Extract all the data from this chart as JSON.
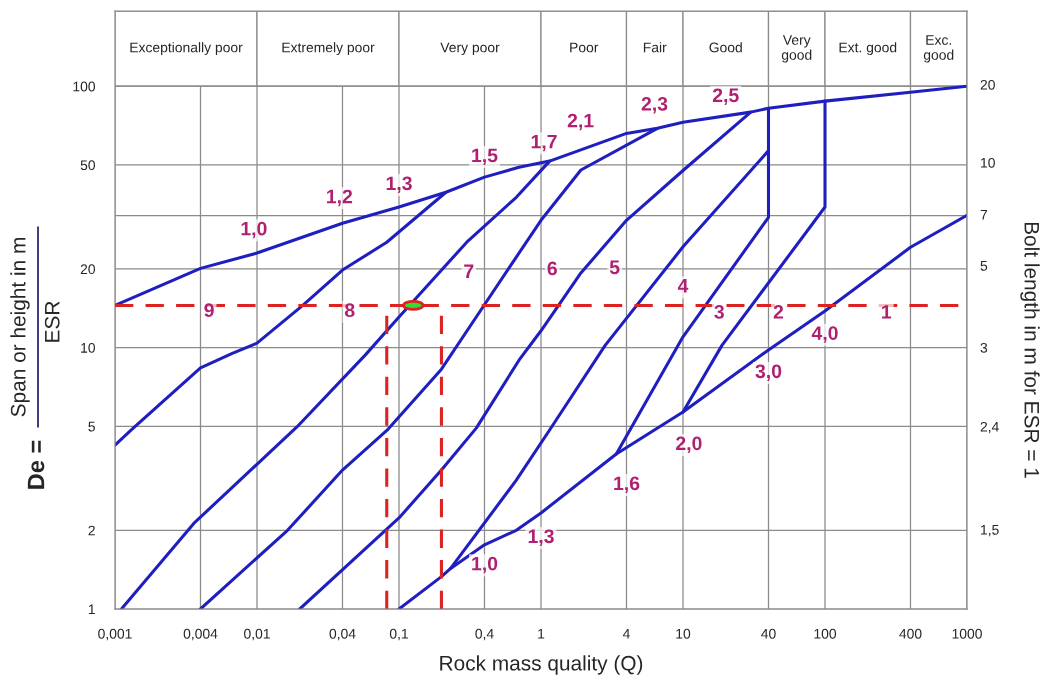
{
  "chart_data": {
    "type": "line",
    "xlabel": "Rock mass quality (Q)",
    "ylabel": "Span or height in m",
    "y2label": "Bolt length in m for ESR = 1",
    "log": "xy",
    "xlim": [
      0.001,
      1000
    ],
    "ylim": [
      1,
      194
    ],
    "xticks": [
      {
        "value": 0.001,
        "label": "0,001"
      },
      {
        "value": 0.004,
        "label": "0,004"
      },
      {
        "value": 0.01,
        "label": "0,01"
      },
      {
        "value": 0.04,
        "label": "0,04"
      },
      {
        "value": 0.1,
        "label": "0,1"
      },
      {
        "value": 0.4,
        "label": "0,4"
      },
      1,
      4,
      10,
      40,
      100,
      400,
      1000
    ],
    "yticks": [
      1,
      2,
      5,
      10,
      20,
      50,
      100
    ],
    "grid": true,
    "series": [
      {
        "color": "#1f1fc0",
        "x": [
          0.001,
          0.004,
          0.01,
          0.04,
          0.1,
          0.214,
          0.4,
          0.7,
          1.15,
          4,
          6.6,
          10,
          30,
          40,
          100,
          400,
          1000
        ],
        "values": [
          14.5,
          20.1,
          23,
          29.9,
          34.5,
          39.3,
          44.9,
          49,
          51.7,
          66,
          69,
          72.8,
          79.6,
          82.4,
          87.7,
          94.9,
          100
        ]
      },
      {
        "color": "#1f1fc0",
        "x": [
          0.1,
          0.199,
          0.231,
          0.4,
          0.67,
          1,
          3.39,
          10,
          40,
          100,
          400,
          1000
        ],
        "values": [
          1,
          1.33,
          1.43,
          1.76,
          2.0,
          2.33,
          3.92,
          5.67,
          9.8,
          13.8,
          24.2,
          32.1
        ]
      },
      {
        "color": "#1f1fc0",
        "x": [
          0.001,
          0.00132,
          0.004,
          0.0067,
          0.01,
          0.021,
          0.04,
          0.082,
          0.214
        ],
        "values": [
          4.24,
          4.88,
          8.37,
          9.5,
          10.4,
          14.5,
          19.8,
          25.3,
          39.3
        ]
      },
      {
        "color": "#1f1fc0",
        "x": [
          0.00111,
          0.0036,
          0.0191,
          0.058,
          0.1,
          0.3,
          0.67,
          1.15
        ],
        "values": [
          1,
          2.13,
          4.97,
          9.38,
          13.1,
          25.3,
          37.6,
          51.7
        ]
      },
      {
        "color": "#1f1fc0",
        "x": [
          0.004,
          0.0164,
          0.04,
          0.084,
          0.199,
          0.39,
          0.67,
          1,
          1.91,
          6.6
        ],
        "values": [
          1,
          2.0,
          3.4,
          4.88,
          8.27,
          14.3,
          22.2,
          30.7,
          47.8,
          69
        ]
      },
      {
        "color": "#1f1fc0",
        "x": [
          0.02,
          0.1,
          0.199,
          0.35,
          0.7,
          1,
          1.91,
          4,
          10,
          30
        ],
        "values": [
          1,
          2.23,
          3.4,
          4.92,
          8.95,
          11.6,
          19.3,
          30.7,
          47.6,
          79.6
        ]
      },
      {
        "color": "#1f1fc0",
        "x": [
          0.231,
          0.67,
          1.15,
          2.83,
          10,
          40
        ],
        "values": [
          1.43,
          3.11,
          4.84,
          10.2,
          24.3,
          56.7
        ]
      },
      {
        "color": "#1f1fc0",
        "x": [
          3.39,
          10,
          40,
          40
        ],
        "values": [
          3.92,
          11,
          31.5,
          82.4
        ]
      },
      {
        "color": "#1f1fc0",
        "x": [
          10,
          18.8,
          100,
          100
        ],
        "values": [
          5.67,
          10.2,
          34.5,
          87.7
        ]
      },
      {
        "color": "#dd2222",
        "line_style": "dashed",
        "x": [
          0.082,
          0.082
        ],
        "values": [
          1,
          14.5
        ]
      },
      {
        "color": "#dd2222",
        "line_style": "dashed",
        "x": [
          0.199,
          0.199
        ],
        "values": [
          1,
          14.5
        ]
      },
      {
        "type": "scatter",
        "color": "#33dd33",
        "marker": "circle",
        "x": [
          0.126
        ],
        "values": [
          14.5
        ]
      }
    ],
    "ref_lines": [
      {
        "axis": "y",
        "value": 14.5,
        "color": "#dd2222",
        "line_style": "dashed"
      },
      {
        "axis": "y",
        "value": 32,
        "color": "#8a8a8a"
      }
    ],
    "bands": [
      {
        "axis": "x",
        "from": 0.001,
        "to": 0.01,
        "label": "Exceptionally poor",
        "color": "#ffffff"
      },
      {
        "axis": "x",
        "from": 0.01,
        "to": 0.1,
        "label": "Extremely poor",
        "color": "#ffffff"
      },
      {
        "axis": "x",
        "from": 0.1,
        "to": 1,
        "label": "Very poor",
        "color": "#ffffff"
      },
      {
        "axis": "x",
        "from": 1,
        "to": 4,
        "label": "Poor",
        "color": "#ffffff"
      },
      {
        "axis": "x",
        "from": 4,
        "to": 10,
        "label": "Fair",
        "color": "#ffffff"
      },
      {
        "axis": "x",
        "from": 10,
        "to": 40,
        "label": "Good",
        "color": "#ffffff"
      },
      {
        "axis": "x",
        "from": 40,
        "to": 100,
        "label": "Very\ngood",
        "color": "#ffffff"
      },
      {
        "axis": "x",
        "from": 100,
        "to": 400,
        "label": "Ext. good",
        "color": "#ffffff"
      },
      {
        "axis": "x",
        "from": 400,
        "to": 1000,
        "label": "Exc.\ngood",
        "color": "#ffffff"
      }
    ],
    "annotations": [
      "De =",
      "ESR",
      "20",
      "10",
      "7",
      "5",
      "3",
      "2,4",
      "1,5",
      {
        "text": "9",
        "x": 0.0046,
        "y": 13.7
      },
      {
        "text": "8",
        "x": 0.045,
        "y": 13.7
      },
      {
        "text": "7",
        "x": 0.31,
        "y": 19.3
      },
      {
        "text": "6",
        "x": 1.2,
        "y": 19.8
      },
      {
        "text": "5",
        "x": 3.3,
        "y": 20
      },
      {
        "text": "4",
        "x": 10,
        "y": 17
      },
      {
        "text": "3",
        "x": 18,
        "y": 13.5
      },
      {
        "text": "2",
        "x": 47,
        "y": 13.5
      },
      {
        "text": "1",
        "x": 270,
        "y": 13.5
      },
      {
        "text": "1,0",
        "x": 0.0095,
        "y": 28.1
      },
      {
        "text": "1,2",
        "x": 0.038,
        "y": 37.3
      },
      {
        "text": "1,3",
        "x": 0.1,
        "y": 41.9
      },
      {
        "text": "1,5",
        "x": 0.4,
        "y": 53.6
      },
      {
        "text": "1,7",
        "x": 1.05,
        "y": 60.5
      },
      {
        "text": "2,1",
        "x": 1.9,
        "y": 72.8
      },
      {
        "text": "2,3",
        "x": 6.3,
        "y": 84.4
      },
      {
        "text": "2,5",
        "x": 20,
        "y": 91
      },
      {
        "text": "1,0",
        "x": 0.4,
        "y": 1.47
      },
      {
        "text": "1,3",
        "x": 1,
        "y": 1.87
      },
      {
        "text": "1,6",
        "x": 4,
        "y": 2.98
      },
      {
        "text": "2,0",
        "x": 11,
        "y": 4.24
      },
      {
        "text": "3,0",
        "x": 40,
        "y": 8.0
      },
      {
        "text": "4,0",
        "x": 100,
        "y": 11.2
      }
    ]
  }
}
